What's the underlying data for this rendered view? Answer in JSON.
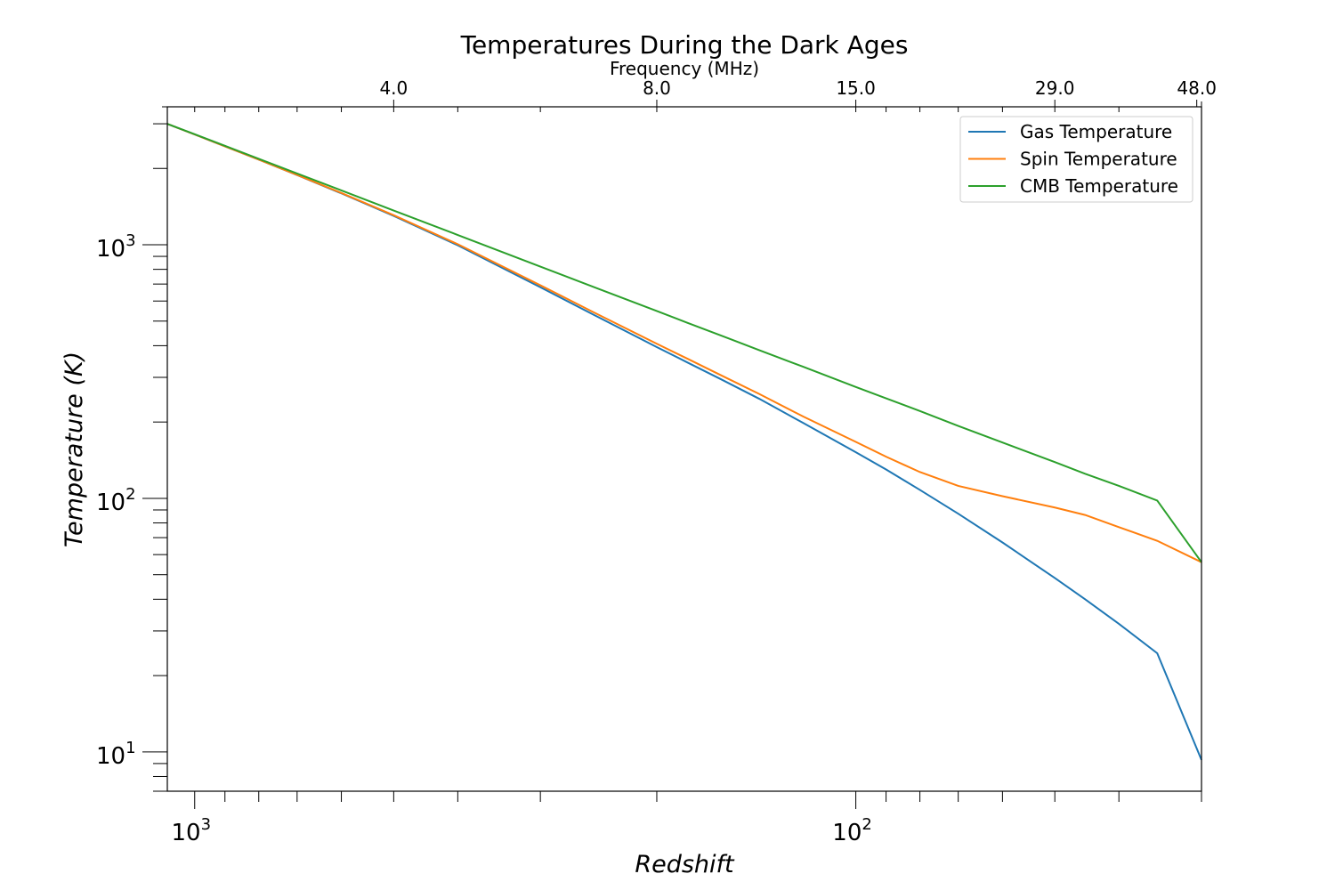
{
  "chart_data": {
    "type": "line",
    "title": "Temperatures During the Dark Ages",
    "xlabel": "Redshift",
    "ylabel": "Temperature (K)",
    "top_xlabel": "Frequency (MHz)",
    "xscale": "log",
    "yscale": "log",
    "x_inverted": true,
    "xlim": [
      1100,
      30
    ],
    "ylim": [
      7,
      3500
    ],
    "x_ticks": [
      {
        "base": "10",
        "exp": "3",
        "value": 1000
      },
      {
        "base": "10",
        "exp": "2",
        "value": 100
      }
    ],
    "y_ticks": [
      {
        "base": "10",
        "exp": "3",
        "value": 1000
      },
      {
        "base": "10",
        "exp": "2",
        "value": 100
      },
      {
        "base": "10",
        "exp": "1",
        "value": 10
      }
    ],
    "top_ticks": [
      {
        "label": "4.0",
        "redshift": 500
      },
      {
        "label": "8.0",
        "redshift": 200
      },
      {
        "label": "15.0",
        "redshift": 100
      },
      {
        "label": "29.0",
        "redshift": 50
      },
      {
        "label": "48.0",
        "redshift": 30.5
      }
    ],
    "legend_position": "top-right",
    "grid": false,
    "series": [
      {
        "name": "Gas Temperature",
        "color": "#1f77b4",
        "x": [
          1100,
          1000,
          900,
          800,
          700,
          600,
          500,
          400,
          300,
          250,
          200,
          180,
          160,
          140,
          120,
          100,
          90,
          80,
          70,
          60,
          50,
          45,
          40,
          35,
          30
        ],
        "y": [
          2998,
          2723,
          2445,
          2166,
          1883,
          1595,
          1300,
          995,
          680,
          532,
          395,
          344,
          295,
          247,
          198,
          152,
          130,
          108,
          87,
          67,
          48.5,
          40,
          32,
          24.5,
          9.3
        ]
      },
      {
        "name": "Spin Temperature",
        "color": "#ff7f0e",
        "x": [
          1100,
          1000,
          900,
          800,
          700,
          600,
          500,
          400,
          300,
          250,
          200,
          180,
          160,
          140,
          120,
          100,
          90,
          80,
          70,
          60,
          50,
          45,
          40,
          35,
          30
        ],
        "y": [
          2998,
          2723,
          2445,
          2167,
          1886,
          1600,
          1308,
          1005,
          692,
          544,
          407,
          356,
          306,
          258,
          210,
          167,
          146,
          127,
          112,
          102,
          92,
          86,
          77,
          68,
          56
        ]
      },
      {
        "name": "CMB Temperature",
        "color": "#2ca02c",
        "x": [
          1100,
          1000,
          900,
          800,
          700,
          600,
          500,
          400,
          300,
          250,
          200,
          180,
          160,
          140,
          120,
          100,
          90,
          80,
          70,
          60,
          50,
          45,
          40,
          35,
          30
        ],
        "y": [
          2998,
          2728,
          2456,
          2183,
          1911,
          1638,
          1365,
          1093,
          820,
          684,
          548,
          493,
          439,
          384,
          330,
          275,
          248,
          221,
          193,
          166,
          139,
          125,
          112,
          98,
          56
        ]
      }
    ]
  }
}
